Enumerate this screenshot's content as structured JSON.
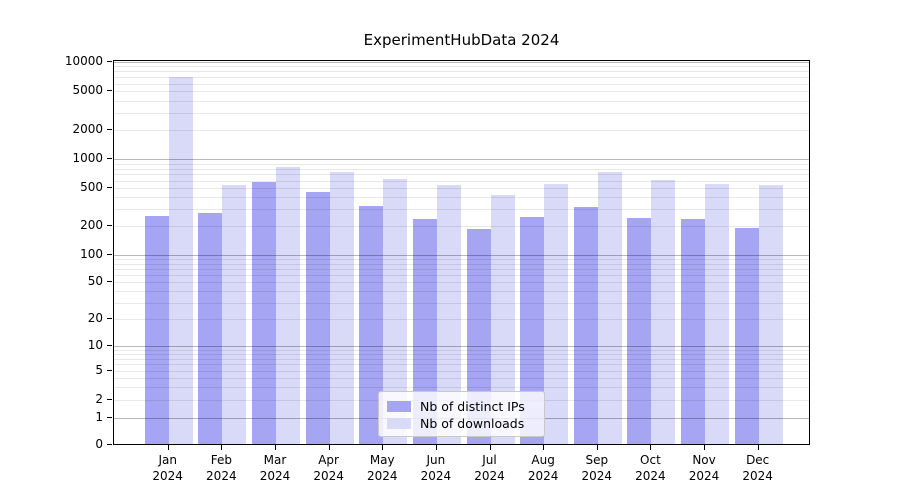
{
  "title": "ExperimentHubData 2024",
  "colors": {
    "bar_distinct_ips": "#a5a5f3",
    "bar_downloads": "#d9d9f8",
    "axis": "#000000",
    "grid_major": "#b8b8b8",
    "grid_minor": "#ebebeb",
    "legend_border": "#c9c9c9",
    "legend_background": "#ffffff"
  },
  "chart_data": {
    "type": "bar",
    "title": "ExperimentHubData 2024",
    "categories": [
      "Jan 2024",
      "Feb 2024",
      "Mar 2024",
      "Apr 2024",
      "May 2024",
      "Jun 2024",
      "Jul 2024",
      "Aug 2024",
      "Sep 2024",
      "Oct 2024",
      "Nov 2024",
      "Dec 2024"
    ],
    "x_tick_months": [
      "Jan",
      "Feb",
      "Mar",
      "Apr",
      "May",
      "Jun",
      "Jul",
      "Aug",
      "Sep",
      "Oct",
      "Nov",
      "Dec"
    ],
    "x_tick_year": "2024",
    "series": [
      {
        "name": "Nb of distinct IPs",
        "values": [
          245,
          265,
          556,
          437,
          308,
          228,
          177,
          239,
          305,
          230,
          224,
          184
        ]
      },
      {
        "name": "Nb of downloads",
        "values": [
          6730,
          513,
          798,
          707,
          589,
          510,
          404,
          526,
          707,
          583,
          530,
          517
        ]
      }
    ],
    "xlabel": "",
    "ylabel": "",
    "yscale": "symlog",
    "ylim": [
      0,
      10000
    ],
    "y_tick_values": [
      0,
      1,
      2,
      5,
      10,
      20,
      50,
      100,
      200,
      500,
      1000,
      2000,
      5000,
      10000
    ],
    "grid": true,
    "legend_position": "lower center"
  },
  "legend": {
    "items": [
      {
        "label": "Nb of distinct IPs"
      },
      {
        "label": "Nb of downloads"
      }
    ]
  }
}
